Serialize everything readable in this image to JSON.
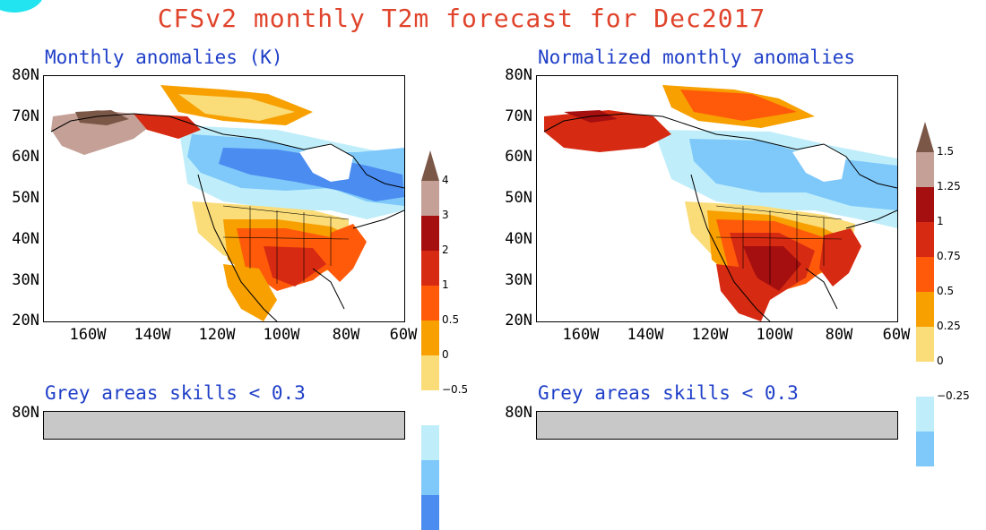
{
  "title": "CFSv2 monthly T2m forecast for Dec2017",
  "panels": {
    "top_left_title": "Monthly anomalies (K)",
    "top_right_title": "Normalized monthly anomalies",
    "bottom_left_title": "Grey areas skills < 0.3",
    "bottom_right_title": "Grey areas skills < 0.3"
  },
  "lat_labels": [
    "80N",
    "70N",
    "60N",
    "50N",
    "40N",
    "30N",
    "20N"
  ],
  "lon_labels": [
    "160W",
    "140W",
    "120W",
    "100W",
    "80W",
    "60W"
  ],
  "bottom_lat_label": "80N",
  "colorbar_left": {
    "labels": [
      "4",
      "3",
      "2",
      "1",
      "0.5",
      "0",
      "−0.5"
    ],
    "colors": [
      "#7b5747",
      "#c4a096",
      "#a50f0f",
      "#d72a12",
      "#ff5a0a",
      "#f7a000",
      "#fadc78",
      "#ffffff",
      "#bfeefa",
      "#7ec8fa",
      "#4a8cf0"
    ]
  },
  "colorbar_right": {
    "labels": [
      "1.5",
      "1.25",
      "1",
      "0.75",
      "0.5",
      "0.25",
      "0",
      "−0.25"
    ],
    "colors": [
      "#7b5747",
      "#c4a096",
      "#a50f0f",
      "#d72a12",
      "#ff5a0a",
      "#f7a000",
      "#fadc78",
      "#ffffff",
      "#bfeefa",
      "#7ec8fa"
    ]
  },
  "colors": {
    "title": "#e0442c",
    "panel_title": "#1f3fc8",
    "skill_grey": "#c8c8c8"
  }
}
